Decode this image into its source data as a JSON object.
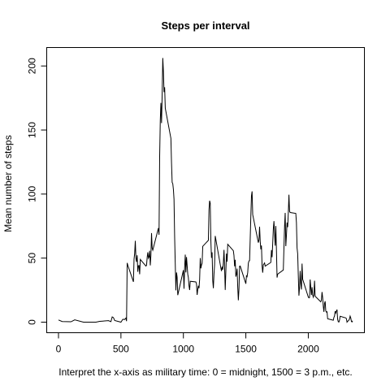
{
  "chart_data": {
    "type": "line",
    "title": "Steps per interval",
    "x_label": "Interpret the x-axis as military time: 0 = midnight, 1500 = 3 p.m., etc.",
    "y_label": "Mean number of steps",
    "x": [
      0,
      30,
      100,
      130,
      200,
      300,
      330,
      400,
      420,
      430,
      440,
      450,
      500,
      515,
      530,
      540,
      545,
      550,
      555,
      600,
      605,
      610,
      615,
      620,
      625,
      630,
      635,
      640,
      645,
      650,
      655,
      700,
      705,
      710,
      715,
      720,
      725,
      730,
      735,
      740,
      745,
      750,
      755,
      800,
      805,
      810,
      815,
      820,
      825,
      830,
      835,
      840,
      845,
      850,
      855,
      900,
      905,
      910,
      915,
      920,
      925,
      930,
      935,
      940,
      945,
      950,
      955,
      1000,
      1005,
      1010,
      1015,
      1020,
      1025,
      1030,
      1035,
      1040,
      1045,
      1050,
      1055,
      1100,
      1105,
      1110,
      1115,
      1120,
      1125,
      1130,
      1135,
      1140,
      1145,
      1150,
      1155,
      1200,
      1205,
      1210,
      1215,
      1220,
      1225,
      1230,
      1235,
      1240,
      1245,
      1250,
      1255,
      1300,
      1305,
      1310,
      1315,
      1320,
      1325,
      1330,
      1335,
      1340,
      1345,
      1350,
      1355,
      1400,
      1405,
      1410,
      1415,
      1420,
      1425,
      1430,
      1435,
      1440,
      1445,
      1450,
      1455,
      1500,
      1505,
      1510,
      1515,
      1520,
      1525,
      1530,
      1535,
      1540,
      1545,
      1550,
      1555,
      1600,
      1605,
      1610,
      1615,
      1620,
      1625,
      1630,
      1635,
      1640,
      1645,
      1650,
      1655,
      1700,
      1705,
      1710,
      1715,
      1720,
      1725,
      1730,
      1735,
      1740,
      1745,
      1750,
      1755,
      1800,
      1805,
      1810,
      1815,
      1820,
      1825,
      1830,
      1835,
      1840,
      1845,
      1850,
      1855,
      1900,
      1905,
      1910,
      1915,
      1920,
      1925,
      1930,
      1935,
      1940,
      1945,
      1950,
      1955,
      2000,
      2005,
      2010,
      2015,
      2020,
      2025,
      2030,
      2035,
      2040,
      2045,
      2050,
      2055,
      2100,
      2105,
      2110,
      2115,
      2120,
      2125,
      2130,
      2135,
      2140,
      2145,
      2150,
      2155,
      2200,
      2205,
      2210,
      2215,
      2220,
      2225,
      2230,
      2235,
      2240,
      2245,
      2250,
      2255,
      2300,
      2305,
      2310,
      2315,
      2320,
      2325,
      2330,
      2335,
      2340,
      2345,
      2350,
      2355
    ],
    "values": [
      1.7,
      0.5,
      0.3,
      1.8,
      0,
      0,
      0.6,
      1.2,
      0.4,
      4.1,
      3.5,
      1.3,
      0,
      2.2,
      2.1,
      3.2,
      0.8,
      46.2,
      44.4,
      31.5,
      49.3,
      53.8,
      63.5,
      50,
      47.1,
      52.2,
      39.3,
      44,
      44.2,
      37.4,
      49,
      43.8,
      44.4,
      50.5,
      54.5,
      49.9,
      51,
      55.7,
      44.3,
      52.3,
      69.5,
      57.8,
      56.2,
      73.4,
      68.2,
      129.4,
      157.5,
      171.2,
      155.4,
      177.3,
      206.2,
      195.9,
      179.6,
      183.4,
      167,
      143.5,
      124,
      109.1,
      108.1,
      103.7,
      95.9,
      66.2,
      45.2,
      24.8,
      38.8,
      35,
      21.1,
      40.6,
      26.1,
      42.4,
      52.7,
      38.9,
      50.8,
      44.3,
      37.4,
      34.7,
      28.3,
      25.1,
      31.9,
      31.4,
      29.7,
      21.3,
      25.5,
      28.4,
      26.5,
      33.4,
      50,
      42,
      44.6,
      46,
      59.2,
      63.9,
      87.7,
      94.8,
      92.8,
      63.4,
      50.2,
      54.5,
      32.4,
      26.5,
      37.7,
      45.1,
      67.3,
      42.3,
      39.9,
      43.3,
      41,
      46.2,
      56.4,
      42.8,
      25.1,
      40,
      53.5,
      47.3,
      60.8,
      55.8,
      52,
      43.6,
      48.7,
      35.5,
      37.5,
      41.8,
      27.5,
      17.1,
      26.1,
      43.6,
      43.8,
      30,
      36.1,
      35.5,
      38.8,
      46,
      47.8,
      48.1,
      65.3,
      82.9,
      98.7,
      102.1,
      84,
      62.1,
      64.1,
      74.5,
      63.2,
      56.9,
      59.8,
      43.9,
      38.6,
      44.7,
      45.5,
      46.2,
      43.7,
      46.6,
      56.3,
      50.7,
      61.2,
      72.7,
      78.9,
      68.9,
      59.7,
      75.1,
      56.5,
      34.8,
      37.5,
      40.7,
      58,
      74.7,
      85.3,
      59.3,
      67.8,
      77.7,
      74.2,
      85.3,
      99.5,
      86.6,
      85.6,
      84.9,
      77.8,
      58,
      53.4,
      36.3,
      20.7,
      27.4,
      40,
      30.2,
      25.5,
      45.7,
      33.5,
      19.6,
      19,
      19.3,
      33.3,
      26.8,
      21.2,
      27.3,
      21.3,
      19.5,
      21.3,
      32.3,
      20.2,
      15.9,
      17.2,
      23.5,
      19.2,
      12.5,
      8,
      14.7,
      16.3,
      8.7,
      7.8,
      8.1,
      2.6,
      1.5,
      3.7,
      4.8,
      8.5,
      7.1,
      8.7,
      9.8,
      2.2,
      0.3,
      0.1,
      1.6,
      4.6,
      3.3,
      2.8,
      0,
      0.8,
      1,
      1.6,
      2.6,
      4.7,
      3.3,
      0.6,
      0.2,
      1.1
    ],
    "color": "#000000",
    "xlim": [
      -94.2,
      2449.2
    ],
    "ylim": [
      -8.25,
      214.4
    ],
    "xticks": [
      0,
      500,
      1000,
      1500,
      2000
    ],
    "yticks": [
      0,
      50,
      100,
      150,
      200
    ],
    "grid": false
  }
}
